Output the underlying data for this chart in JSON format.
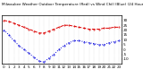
{
  "title": "Milwaukee Weather Outdoor Temperature (Red) vs Wind Chill (Blue) (24 Hours)",
  "title_fontsize": 3.0,
  "background_color": "#ffffff",
  "hours": [
    0,
    1,
    2,
    3,
    4,
    5,
    6,
    7,
    8,
    9,
    10,
    11,
    12,
    13,
    14,
    15,
    16,
    17,
    18,
    19,
    20,
    21,
    22,
    23
  ],
  "temp_red": [
    30,
    29,
    27,
    25,
    23,
    21,
    19,
    17,
    17,
    19,
    21,
    23,
    25,
    25,
    24,
    23,
    22,
    21,
    21,
    21,
    22,
    22,
    23,
    23
  ],
  "wind_chill_blue": [
    20,
    15,
    9,
    4,
    0,
    -4,
    -8,
    -12,
    -13,
    -9,
    -5,
    0,
    4,
    7,
    9,
    9,
    8,
    7,
    6,
    5,
    5,
    7,
    8,
    9
  ],
  "ylim": [
    -15,
    35
  ],
  "ytick_vals": [
    -10,
    -5,
    0,
    5,
    10,
    15,
    20,
    25,
    30
  ],
  "ytick_labels": [
    "-10",
    "-5",
    "0",
    "5",
    "10",
    "15",
    "20",
    "25",
    "30"
  ],
  "red_color": "#dd0000",
  "blue_color": "#0000dd",
  "black_color": "#000000",
  "grid_color": "#aaaaaa",
  "tick_fontsize": 3.0,
  "line_width": 0.7,
  "marker_size": 0.8,
  "xlim": [
    -0.5,
    23.5
  ]
}
